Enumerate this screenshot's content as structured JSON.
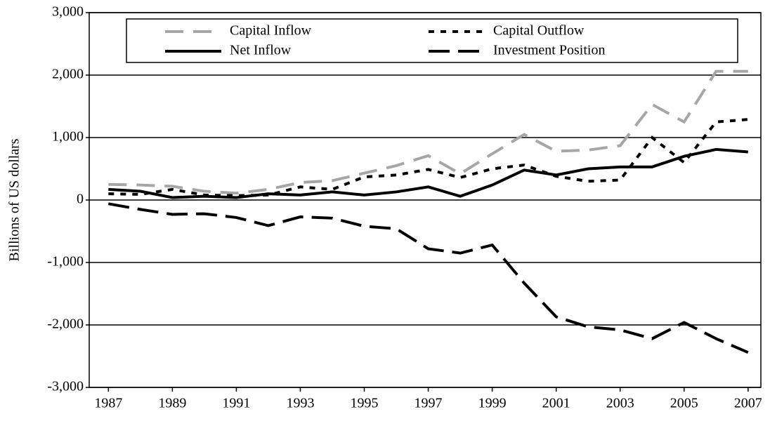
{
  "chart_data": {
    "type": "line",
    "y_label": "Billions of US dollars",
    "x": [
      1987,
      1988,
      1989,
      1990,
      1991,
      1992,
      1993,
      1994,
      1995,
      1996,
      1997,
      1998,
      1999,
      2000,
      2001,
      2002,
      2003,
      2004,
      2005,
      2006,
      2007
    ],
    "xlim": [
      1986.4,
      2007.4
    ],
    "xticks": [
      1987,
      1989,
      1991,
      1993,
      1995,
      1997,
      1999,
      2001,
      2003,
      2005,
      2007
    ],
    "ylim": [
      -3000,
      3000
    ],
    "yticks": [
      {
        "value": -3000,
        "label": "-3,000"
      },
      {
        "value": -2000,
        "label": "-2,000"
      },
      {
        "value": -1000,
        "label": "-1,000"
      },
      0,
      {
        "value": 1000,
        "label": "1,000"
      },
      {
        "value": 2000,
        "label": "2,000"
      },
      {
        "value": 3000,
        "label": "3,000"
      }
    ],
    "grid": true,
    "legend": "top",
    "series": [
      {
        "name": "Capital Inflow",
        "color": "#a6a6a6",
        "style": "dashed",
        "values": [
          250,
          240,
          220,
          140,
          110,
          170,
          280,
          310,
          430,
          550,
          710,
          420,
          740,
          1050,
          780,
          800,
          870,
          1530,
          1250,
          2060,
          2060
        ]
      },
      {
        "name": "Capital Outflow",
        "color": "#000000",
        "style": "dotted",
        "values": [
          100,
          90,
          170,
          80,
          70,
          80,
          210,
          170,
          370,
          400,
          490,
          360,
          500,
          560,
          380,
          300,
          320,
          1000,
          600,
          1250,
          1290
        ]
      },
      {
        "name": "Net Inflow",
        "color": "#000000",
        "style": "solid",
        "values": [
          170,
          140,
          40,
          60,
          40,
          100,
          80,
          130,
          80,
          130,
          210,
          60,
          240,
          480,
          400,
          500,
          530,
          530,
          700,
          810,
          770
        ]
      },
      {
        "name": "Investment Position",
        "color": "#000000",
        "style": "longdash",
        "values": [
          -60,
          -150,
          -230,
          -220,
          -280,
          -410,
          -270,
          -290,
          -420,
          -460,
          -780,
          -850,
          -720,
          -1330,
          -1870,
          -2030,
          -2080,
          -2220,
          -1960,
          -2220,
          -2440
        ]
      }
    ]
  }
}
